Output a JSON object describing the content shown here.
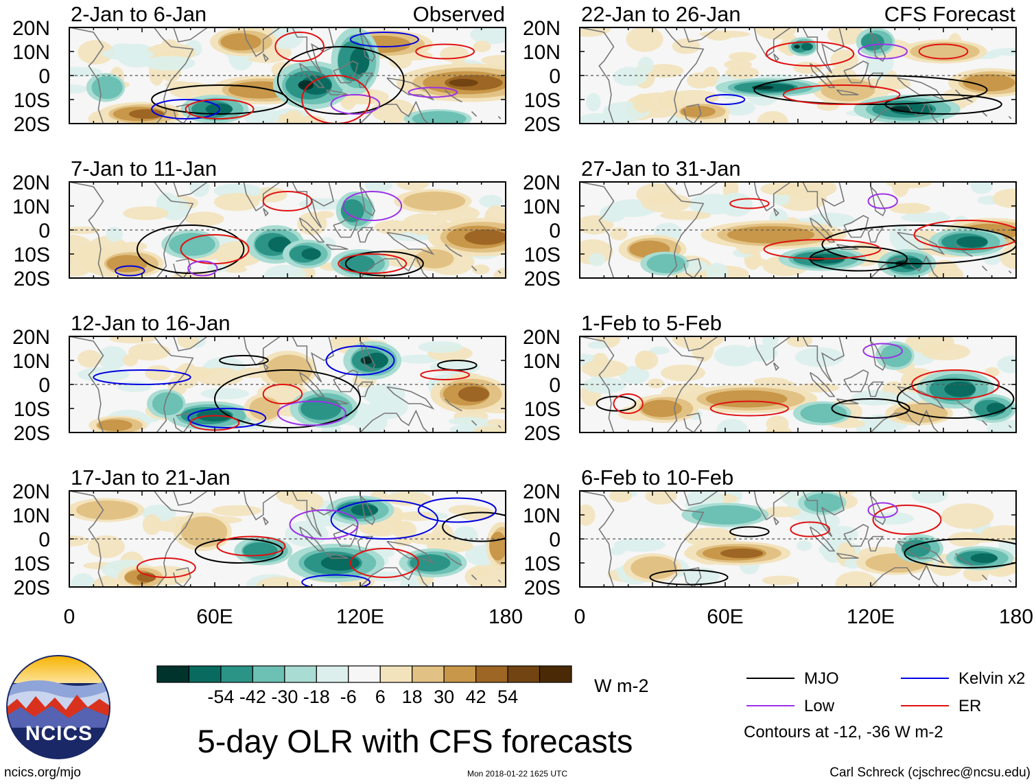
{
  "chart_data": {
    "type": "heatmap",
    "title": "5-day OLR with CFS forecasts",
    "variable": "OLR anomaly",
    "units": "W m-2",
    "columns": [
      {
        "label": "Observed",
        "panels": [
          "2-Jan to 6-Jan",
          "7-Jan to 11-Jan",
          "12-Jan to 16-Jan",
          "17-Jan to 21-Jan"
        ]
      },
      {
        "label": "CFS Forecast",
        "panels": [
          "22-Jan to 26-Jan",
          "27-Jan to 31-Jan",
          "1-Feb to 5-Feb",
          "6-Feb to 10-Feb"
        ]
      }
    ],
    "lat_ticks": [
      "20N",
      "10N",
      "0",
      "10S",
      "20S"
    ],
    "lat_values": [
      20,
      10,
      0,
      -10,
      -20
    ],
    "lon_ticks": [
      "0",
      "60E",
      "120E",
      "180"
    ],
    "lon_values": [
      0,
      60,
      120,
      180
    ],
    "colorbar": {
      "bounds": [
        -54,
        -42,
        -30,
        -18,
        -6,
        6,
        18,
        30,
        42,
        54
      ],
      "tick_labels": [
        "-54",
        "-42",
        "-30",
        "-18",
        "-6",
        "6",
        "18",
        "30",
        "42",
        "54"
      ],
      "colors": [
        "#01332d",
        "#096b5f",
        "#2b9487",
        "#6dc0b4",
        "#a9dcd2",
        "#dcefec",
        "#f6f6f6",
        "#f3e3bd",
        "#e2c284",
        "#c89749",
        "#9d6624",
        "#714411",
        "#4a2a06"
      ]
    },
    "contours": {
      "legend": [
        {
          "label": "MJO",
          "color": "#000000"
        },
        {
          "label": "Kelvin x2",
          "color": "#0000e0"
        },
        {
          "label": "Low",
          "color": "#9b30e6"
        },
        {
          "label": "ER",
          "color": "#e01010"
        }
      ],
      "note": "Contours at -12, -36 W m-2"
    }
  },
  "footer": {
    "logo_text": "NCICS",
    "url": "ncics.org/mjo",
    "timestamp": "Mon 2018-01-22 1625 UTC",
    "credit": "Carl Schreck (cjschrec@ncsu.edu)"
  }
}
